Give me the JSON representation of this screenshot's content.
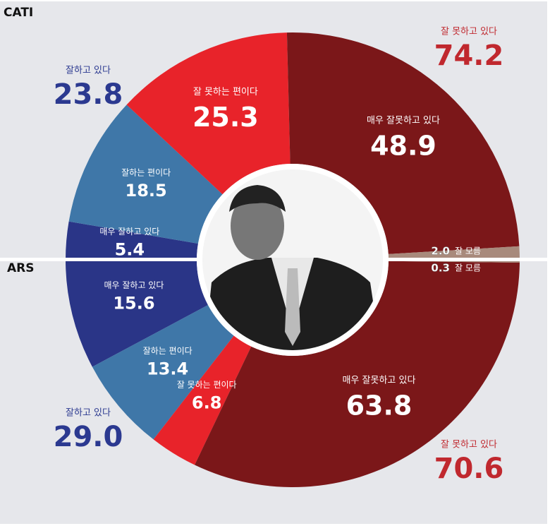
{
  "chart_data": [
    {
      "type": "half-donut",
      "title": "CATI",
      "half": "top",
      "categories": [
        "매우 잘하고 있다",
        "잘하는 편이다",
        "잘 못하는 편이다",
        "매우 잘못하고 있다",
        "잘 모름"
      ],
      "values": [
        5.4,
        18.5,
        25.3,
        48.9,
        2.0
      ],
      "value_labels": [
        "5.4",
        "18.5",
        "25.3",
        "48.9",
        "2.0"
      ],
      "colors": [
        "#2a3587",
        "#3f77a8",
        "#e8232a",
        "#7b1719",
        "#a88a7c"
      ],
      "groups": [
        {
          "name": "잘하고 있다",
          "value": 23.8,
          "color": "#2b3990"
        },
        {
          "name": "잘 못하고 있다",
          "value": 74.2,
          "color": "#c0282e"
        }
      ]
    },
    {
      "type": "half-donut",
      "title": "ARS",
      "half": "bottom",
      "categories": [
        "매우 잘하고 있다",
        "잘하는 편이다",
        "잘 못하는 편이다",
        "매우 잘못하고 있다",
        "잘 모름"
      ],
      "values": [
        15.6,
        13.4,
        6.8,
        63.8,
        0.3
      ],
      "value_labels": [
        "15.6",
        "13.4",
        "6.8",
        "63.8",
        "0.3"
      ],
      "colors": [
        "#2a3587",
        "#3f77a8",
        "#e8232a",
        "#7b1719",
        "#a88a7c"
      ],
      "groups": [
        {
          "name": "잘하고 있다",
          "value": 29.0,
          "value_label": "29.0",
          "color": "#2b3990"
        },
        {
          "name": "잘 못하고 있다",
          "value": 70.6,
          "color": "#c0282e"
        }
      ]
    }
  ]
}
